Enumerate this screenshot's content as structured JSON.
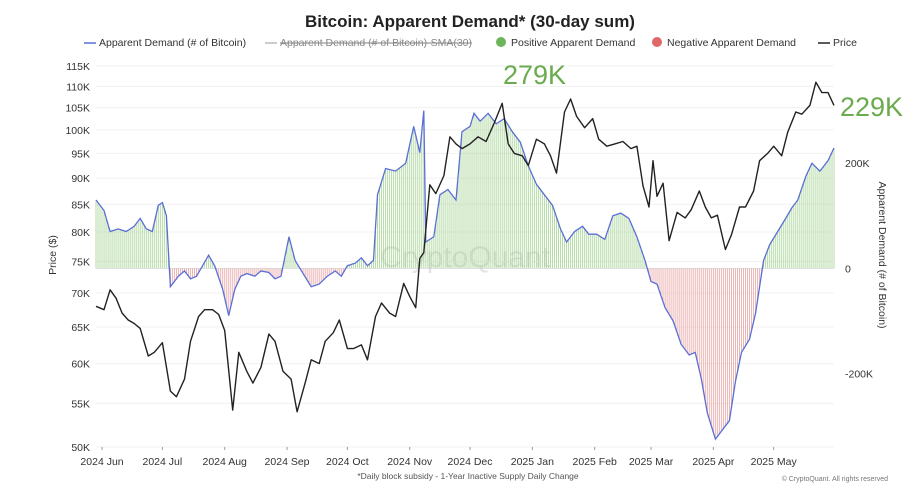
{
  "chart_data": {
    "type": "line",
    "title": "Bitcoin: Apparent Demand* (30-day sum)",
    "footnote": "*Daily block subsidy - 1-Year Inactive Supply Daily Change",
    "credit": "© CryptoQuant. All rights reserved",
    "watermark": "CryptoQuant",
    "legend": [
      {
        "label": "Apparent Demand (# of Bitcoin)",
        "marker": "line",
        "color": "#5a6fd6",
        "struck": false
      },
      {
        "label": "Apparent Demand (# of Bitcoin)-SMA(30)",
        "marker": "line",
        "color": "#bbbbbb",
        "struck": true
      },
      {
        "label": "Positive Apparent Demand",
        "marker": "dot",
        "color": "#6db45a",
        "struck": false
      },
      {
        "label": "Negative Apparent Demand",
        "marker": "dot",
        "color": "#e06868",
        "struck": false
      },
      {
        "label": "Price",
        "marker": "line",
        "color": "#222222",
        "struck": false
      }
    ],
    "ylabel_left": "Price ($)",
    "ylabel_right": "Apparent Demand (# of Bitcoin)",
    "left_axis": {
      "ticks": [
        50000,
        55000,
        60000,
        65000,
        70000,
        75000,
        80000,
        85000,
        90000,
        95000,
        100000,
        105000,
        110000,
        115000
      ],
      "labels": [
        "50K",
        "55K",
        "60K",
        "65K",
        "70K",
        "75K",
        "80K",
        "85K",
        "90K",
        "95K",
        "100K",
        "105K",
        "110K",
        "115K"
      ],
      "scale": "log",
      "range": [
        50000,
        115000
      ]
    },
    "right_axis": {
      "ticks": [
        200000,
        0,
        -200000
      ],
      "labels": [
        "200K",
        "0",
        "-200K"
      ],
      "range": [
        -340000,
        385000
      ]
    },
    "x_axis": {
      "range": [
        "2024-05-29",
        "2025-05-31"
      ],
      "ticks": [
        "2024-06-01",
        "2024-07-01",
        "2024-08-01",
        "2024-09-01",
        "2024-10-01",
        "2024-11-01",
        "2024-12-01",
        "2025-01-01",
        "2025-02-01",
        "2025-03-01",
        "2025-04-01",
        "2025-05-01"
      ],
      "labels": [
        "2024 Jun",
        "2024 Jul",
        "2024 Aug",
        "2024 Sep",
        "2024 Oct",
        "2024 Nov",
        "2024 Dec",
        "2025 Jan",
        "2025 Feb",
        "2025 Mar",
        "2025 Apr",
        "2025 May"
      ]
    },
    "annotations": [
      {
        "text": "279K",
        "date": "2024-12-05"
      },
      {
        "text": "229K",
        "date": "2025-05-31"
      }
    ],
    "series": [
      {
        "name": "Price",
        "axis": "left",
        "color": "#222222",
        "points": [
          [
            "2024-05-29",
            68000
          ],
          [
            "2024-06-02",
            67500
          ],
          [
            "2024-06-05",
            70500
          ],
          [
            "2024-06-08",
            69200
          ],
          [
            "2024-06-11",
            67000
          ],
          [
            "2024-06-14",
            66000
          ],
          [
            "2024-06-17",
            65500
          ],
          [
            "2024-06-20",
            64800
          ],
          [
            "2024-06-24",
            61000
          ],
          [
            "2024-06-27",
            61500
          ],
          [
            "2024-07-01",
            62800
          ],
          [
            "2024-07-05",
            56500
          ],
          [
            "2024-07-08",
            55800
          ],
          [
            "2024-07-12",
            58000
          ],
          [
            "2024-07-15",
            63000
          ],
          [
            "2024-07-19",
            66500
          ],
          [
            "2024-07-22",
            67500
          ],
          [
            "2024-07-26",
            67500
          ],
          [
            "2024-07-29",
            66800
          ],
          [
            "2024-08-01",
            64500
          ],
          [
            "2024-08-05",
            54200
          ],
          [
            "2024-08-08",
            61500
          ],
          [
            "2024-08-12",
            59000
          ],
          [
            "2024-08-15",
            57500
          ],
          [
            "2024-08-19",
            59500
          ],
          [
            "2024-08-23",
            64000
          ],
          [
            "2024-08-26",
            63000
          ],
          [
            "2024-08-30",
            59000
          ],
          [
            "2024-09-03",
            58000
          ],
          [
            "2024-09-06",
            54000
          ],
          [
            "2024-09-10",
            57500
          ],
          [
            "2024-09-13",
            60500
          ],
          [
            "2024-09-17",
            60000
          ],
          [
            "2024-09-20",
            63000
          ],
          [
            "2024-09-24",
            64200
          ],
          [
            "2024-09-27",
            66000
          ],
          [
            "2024-10-01",
            62000
          ],
          [
            "2024-10-04",
            62000
          ],
          [
            "2024-10-08",
            62500
          ],
          [
            "2024-10-11",
            60500
          ],
          [
            "2024-10-15",
            66500
          ],
          [
            "2024-10-18",
            68500
          ],
          [
            "2024-10-22",
            67000
          ],
          [
            "2024-10-25",
            66500
          ],
          [
            "2024-10-29",
            71500
          ],
          [
            "2024-11-01",
            69500
          ],
          [
            "2024-11-04",
            67800
          ],
          [
            "2024-11-06",
            75500
          ],
          [
            "2024-11-08",
            76500
          ],
          [
            "2024-11-11",
            88700
          ],
          [
            "2024-11-14",
            87000
          ],
          [
            "2024-11-18",
            90500
          ],
          [
            "2024-11-21",
            98500
          ],
          [
            "2024-11-24",
            97000
          ],
          [
            "2024-11-27",
            96000
          ],
          [
            "2024-12-01",
            97000
          ],
          [
            "2024-12-05",
            98500
          ],
          [
            "2024-12-09",
            97500
          ],
          [
            "2024-12-13",
            101500
          ],
          [
            "2024-12-17",
            106000
          ],
          [
            "2024-12-20",
            97000
          ],
          [
            "2024-12-23",
            95000
          ],
          [
            "2024-12-27",
            94500
          ],
          [
            "2024-12-30",
            92500
          ],
          [
            "2025-01-03",
            98000
          ],
          [
            "2025-01-07",
            97000
          ],
          [
            "2025-01-10",
            94500
          ],
          [
            "2025-01-13",
            91000
          ],
          [
            "2025-01-17",
            104000
          ],
          [
            "2025-01-20",
            107000
          ],
          [
            "2025-01-23",
            103000
          ],
          [
            "2025-01-27",
            100500
          ],
          [
            "2025-01-31",
            102500
          ],
          [
            "2025-02-03",
            98000
          ],
          [
            "2025-02-07",
            96500
          ],
          [
            "2025-02-11",
            97000
          ],
          [
            "2025-02-15",
            97500
          ],
          [
            "2025-02-19",
            96000
          ],
          [
            "2025-02-22",
            96500
          ],
          [
            "2025-02-25",
            88500
          ],
          [
            "2025-02-28",
            84500
          ],
          [
            "2025-03-02",
            93500
          ],
          [
            "2025-03-04",
            86500
          ],
          [
            "2025-03-07",
            89000
          ],
          [
            "2025-03-10",
            78500
          ],
          [
            "2025-03-14",
            83500
          ],
          [
            "2025-03-18",
            82500
          ],
          [
            "2025-03-21",
            84000
          ],
          [
            "2025-03-25",
            87500
          ],
          [
            "2025-03-28",
            84500
          ],
          [
            "2025-03-31",
            82500
          ],
          [
            "2025-04-03",
            83000
          ],
          [
            "2025-04-07",
            77000
          ],
          [
            "2025-04-10",
            79500
          ],
          [
            "2025-04-14",
            84500
          ],
          [
            "2025-04-17",
            84500
          ],
          [
            "2025-04-21",
            87500
          ],
          [
            "2025-04-24",
            93500
          ],
          [
            "2025-04-28",
            95000
          ],
          [
            "2025-05-01",
            96500
          ],
          [
            "2025-05-05",
            94500
          ],
          [
            "2025-05-08",
            99500
          ],
          [
            "2025-05-12",
            104000
          ],
          [
            "2025-05-15",
            103500
          ],
          [
            "2025-05-19",
            105500
          ],
          [
            "2025-05-22",
            111000
          ],
          [
            "2025-05-25",
            108500
          ],
          [
            "2025-05-28",
            108500
          ],
          [
            "2025-05-31",
            105500
          ]
        ]
      },
      {
        "name": "Apparent Demand (# of Bitcoin)",
        "axis": "right",
        "color": "#5a6fd6",
        "points": [
          [
            "2024-05-29",
            130000
          ],
          [
            "2024-06-02",
            110000
          ],
          [
            "2024-06-05",
            70000
          ],
          [
            "2024-06-09",
            75000
          ],
          [
            "2024-06-13",
            70000
          ],
          [
            "2024-06-17",
            80000
          ],
          [
            "2024-06-20",
            95000
          ],
          [
            "2024-06-23",
            75000
          ],
          [
            "2024-06-26",
            70000
          ],
          [
            "2024-06-29",
            120000
          ],
          [
            "2024-07-01",
            125000
          ],
          [
            "2024-07-03",
            100000
          ],
          [
            "2024-07-05",
            -35000
          ],
          [
            "2024-07-09",
            -15000
          ],
          [
            "2024-07-12",
            -5000
          ],
          [
            "2024-07-15",
            -20000
          ],
          [
            "2024-07-18",
            -15000
          ],
          [
            "2024-07-21",
            5000
          ],
          [
            "2024-07-24",
            25000
          ],
          [
            "2024-07-27",
            5000
          ],
          [
            "2024-07-31",
            -40000
          ],
          [
            "2024-08-03",
            -90000
          ],
          [
            "2024-08-06",
            -40000
          ],
          [
            "2024-08-09",
            -15000
          ],
          [
            "2024-08-12",
            -10000
          ],
          [
            "2024-08-16",
            -15000
          ],
          [
            "2024-08-19",
            -5000
          ],
          [
            "2024-08-23",
            -8000
          ],
          [
            "2024-08-26",
            -20000
          ],
          [
            "2024-08-29",
            -15000
          ],
          [
            "2024-09-02",
            60000
          ],
          [
            "2024-09-05",
            15000
          ],
          [
            "2024-09-09",
            -10000
          ],
          [
            "2024-09-13",
            -35000
          ],
          [
            "2024-09-17",
            -30000
          ],
          [
            "2024-09-21",
            -15000
          ],
          [
            "2024-09-25",
            -5000
          ],
          [
            "2024-09-28",
            -15000
          ],
          [
            "2024-10-01",
            5000
          ],
          [
            "2024-10-05",
            10000
          ],
          [
            "2024-10-08",
            20000
          ],
          [
            "2024-10-11",
            5000
          ],
          [
            "2024-10-14",
            15000
          ],
          [
            "2024-10-16",
            140000
          ],
          [
            "2024-10-20",
            190000
          ],
          [
            "2024-10-25",
            185000
          ],
          [
            "2024-10-30",
            200000
          ],
          [
            "2024-11-03",
            270000
          ],
          [
            "2024-11-06",
            220000
          ],
          [
            "2024-11-08",
            300000
          ],
          [
            "2024-11-09",
            50000
          ],
          [
            "2024-11-13",
            60000
          ],
          [
            "2024-11-16",
            140000
          ],
          [
            "2024-11-20",
            150000
          ],
          [
            "2024-11-24",
            130000
          ],
          [
            "2024-11-27",
            260000
          ],
          [
            "2024-12-01",
            270000
          ],
          [
            "2024-12-03",
            295000
          ],
          [
            "2024-12-06",
            280000
          ],
          [
            "2024-12-10",
            295000
          ],
          [
            "2024-12-14",
            275000
          ],
          [
            "2024-12-18",
            285000
          ],
          [
            "2024-12-22",
            260000
          ],
          [
            "2024-12-26",
            240000
          ],
          [
            "2024-12-30",
            195000
          ],
          [
            "2025-01-03",
            160000
          ],
          [
            "2025-01-07",
            140000
          ],
          [
            "2025-01-11",
            120000
          ],
          [
            "2025-01-15",
            75000
          ],
          [
            "2025-01-18",
            50000
          ],
          [
            "2025-01-22",
            70000
          ],
          [
            "2025-01-26",
            80000
          ],
          [
            "2025-01-29",
            65000
          ],
          [
            "2025-02-02",
            65000
          ],
          [
            "2025-02-06",
            55000
          ],
          [
            "2025-02-10",
            100000
          ],
          [
            "2025-02-14",
            105000
          ],
          [
            "2025-02-18",
            95000
          ],
          [
            "2025-02-22",
            60000
          ],
          [
            "2025-02-26",
            15000
          ],
          [
            "2025-03-01",
            -25000
          ],
          [
            "2025-03-04",
            -30000
          ],
          [
            "2025-03-08",
            -75000
          ],
          [
            "2025-03-12",
            -100000
          ],
          [
            "2025-03-16",
            -145000
          ],
          [
            "2025-03-20",
            -165000
          ],
          [
            "2025-03-23",
            -160000
          ],
          [
            "2025-03-26",
            -210000
          ],
          [
            "2025-03-29",
            -275000
          ],
          [
            "2025-04-02",
            -325000
          ],
          [
            "2025-04-05",
            -310000
          ],
          [
            "2025-04-09",
            -290000
          ],
          [
            "2025-04-12",
            -215000
          ],
          [
            "2025-04-15",
            -160000
          ],
          [
            "2025-04-19",
            -135000
          ],
          [
            "2025-04-22",
            -85000
          ],
          [
            "2025-04-26",
            15000
          ],
          [
            "2025-04-29",
            45000
          ],
          [
            "2025-05-03",
            70000
          ],
          [
            "2025-05-07",
            95000
          ],
          [
            "2025-05-10",
            115000
          ],
          [
            "2025-05-13",
            130000
          ],
          [
            "2025-05-17",
            175000
          ],
          [
            "2025-05-20",
            200000
          ],
          [
            "2025-05-24",
            185000
          ],
          [
            "2025-05-28",
            205000
          ],
          [
            "2025-05-31",
            229000
          ]
        ]
      }
    ]
  }
}
